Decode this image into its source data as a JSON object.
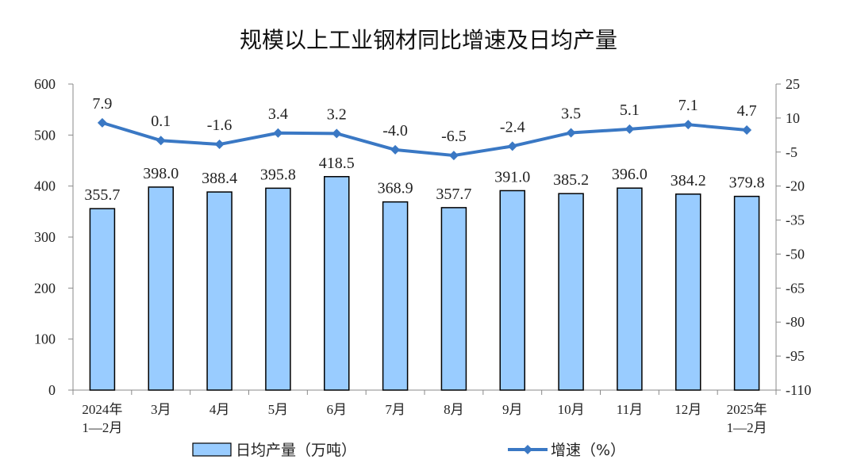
{
  "chart_data": {
    "type": "bar+line",
    "title": "规模以上工业钢材同比增速及日均产量",
    "categories": [
      [
        "2024年",
        "1—2月"
      ],
      [
        "3月"
      ],
      [
        "4月"
      ],
      [
        "5月"
      ],
      [
        "6月"
      ],
      [
        "7月"
      ],
      [
        "8月"
      ],
      [
        "9月"
      ],
      [
        "10月"
      ],
      [
        "11月"
      ],
      [
        "12月"
      ],
      [
        "2025年",
        "1—2月"
      ]
    ],
    "series": [
      {
        "name": "日均产量（万吨）",
        "type": "bar",
        "axis": "left",
        "color": "#99ccff",
        "values": [
          355.7,
          398.0,
          388.4,
          395.8,
          418.5,
          368.9,
          357.7,
          391.0,
          385.2,
          396.0,
          384.2,
          379.8
        ],
        "labels": [
          "355.7",
          "398.0",
          "388.4",
          "395.8",
          "418.5",
          "368.9",
          "357.7",
          "391.0",
          "385.2",
          "396.0",
          "384.2",
          "379.8"
        ]
      },
      {
        "name": "增速（%）",
        "type": "line",
        "axis": "right",
        "color": "#3a78c4",
        "values": [
          7.9,
          0.1,
          -1.6,
          3.4,
          3.2,
          -4.0,
          -6.5,
          -2.4,
          3.5,
          5.1,
          7.1,
          4.7
        ],
        "labels": [
          "7.9",
          "0.1",
          "-1.6",
          "3.4",
          "3.2",
          "-4.0",
          "-6.5",
          "-2.4",
          "3.5",
          "5.1",
          "7.1",
          "4.7"
        ]
      }
    ],
    "left_axis": {
      "min": 0,
      "max": 600,
      "ticks": [
        0,
        100,
        200,
        300,
        400,
        500,
        600
      ],
      "tick_labels": [
        "0",
        "100",
        "200",
        "300",
        "400",
        "500",
        "600"
      ]
    },
    "right_axis": {
      "min": -110,
      "max": 25,
      "ticks": [
        -110,
        -95,
        -80,
        -65,
        -50,
        -35,
        -20,
        -5,
        10,
        25
      ],
      "tick_labels": [
        "-110",
        "-95",
        "-80",
        "-65",
        "-50",
        "-35",
        "-20",
        "-5",
        "10",
        "25"
      ]
    },
    "grid": false,
    "legend_position": "bottom"
  }
}
